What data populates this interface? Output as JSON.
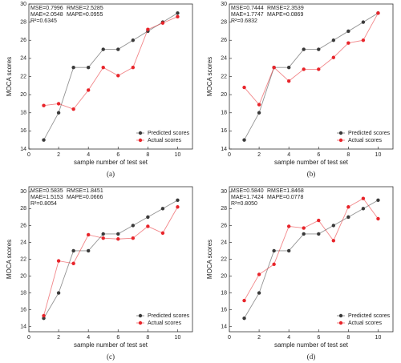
{
  "chart_data": [
    {
      "type": "line",
      "panel_label": "(a)",
      "xlabel": "sample number of test set",
      "ylabel": "MOCA scores",
      "x": [
        1,
        2,
        3,
        4,
        5,
        6,
        7,
        8,
        9,
        10
      ],
      "xlim": [
        0,
        11
      ],
      "xticks": [
        0,
        2,
        4,
        6,
        8,
        10
      ],
      "ylim": [
        14,
        30
      ],
      "yticks": [
        14,
        16,
        18,
        20,
        22,
        24,
        26,
        28,
        30
      ],
      "annotations": [
        "MSE=0.7996",
        "RMSE=2.5285",
        "MAE=2.0548",
        "MAPE=0.0955",
        "R²=0.6345"
      ],
      "legend": "lower right",
      "series": [
        {
          "name": "Predicted scores",
          "color": "#3a3a3a",
          "values": [
            15,
            18,
            23,
            23,
            25,
            25,
            26,
            27,
            28,
            29
          ]
        },
        {
          "name": "Actual scores",
          "color": "#e8242a",
          "values": [
            18.8,
            19,
            18.4,
            20.5,
            23,
            22.1,
            23,
            27.2,
            27.9,
            28.6
          ]
        }
      ]
    },
    {
      "type": "line",
      "panel_label": "(b)",
      "xlabel": "sample number of test set",
      "ylabel": "MOCA scores",
      "x": [
        1,
        2,
        3,
        4,
        5,
        6,
        7,
        8,
        9,
        10
      ],
      "xlim": [
        0,
        11
      ],
      "xticks": [
        0,
        2,
        4,
        6,
        8,
        10
      ],
      "ylim": [
        14,
        30
      ],
      "yticks": [
        14,
        16,
        18,
        20,
        22,
        24,
        26,
        28,
        30
      ],
      "annotations": [
        "MSE=0.7444",
        "RMSE=2.3539",
        "MAE=1.7747",
        "MAPE=0.0869",
        "R²=0.6832"
      ],
      "legend": "lower right",
      "series": [
        {
          "name": "Predicted scores",
          "color": "#3a3a3a",
          "values": [
            15,
            18,
            23,
            23,
            25,
            25,
            26,
            27,
            28,
            29
          ]
        },
        {
          "name": "Actual scores",
          "color": "#e8242a",
          "values": [
            20.8,
            18.9,
            23,
            21.5,
            22.8,
            22.8,
            24.1,
            25.7,
            26,
            29
          ]
        }
      ]
    },
    {
      "type": "line",
      "panel_label": "(c)",
      "xlabel": "sample number of test set",
      "ylabel": "MOCA scores",
      "x": [
        1,
        2,
        3,
        4,
        5,
        6,
        7,
        8,
        9,
        10
      ],
      "xlim": [
        0,
        11
      ],
      "xticks": [
        0,
        2,
        4,
        6,
        8,
        10
      ],
      "ylim": [
        13.4,
        30.6
      ],
      "yticks": [
        14,
        16,
        18,
        20,
        22,
        24,
        26,
        28,
        30
      ],
      "annotations": [
        "MSE=0.5835",
        "RMSE=1.8451",
        "MAE=1.5153",
        "MAPE=0.0666",
        "R²=0.8054"
      ],
      "legend": "lower right",
      "series": [
        {
          "name": "Predicted scores",
          "color": "#3a3a3a",
          "values": [
            15,
            18,
            23,
            23,
            25,
            25,
            26,
            27,
            28,
            29
          ]
        },
        {
          "name": "Actual scores",
          "color": "#e8242a",
          "values": [
            15.3,
            21.8,
            21.5,
            24.9,
            24.5,
            24.4,
            24.5,
            25.9,
            25.1,
            28.2
          ]
        }
      ]
    },
    {
      "type": "line",
      "panel_label": "(d)",
      "xlabel": "sample number of test set",
      "ylabel": "MOCA scores",
      "x": [
        1,
        2,
        3,
        4,
        5,
        6,
        7,
        8,
        9,
        10
      ],
      "xlim": [
        0,
        11
      ],
      "xticks": [
        0,
        2,
        4,
        6,
        8,
        10
      ],
      "ylim": [
        13.4,
        30.6
      ],
      "yticks": [
        14,
        16,
        18,
        20,
        22,
        24,
        26,
        28,
        30
      ],
      "annotations": [
        "MSE=0.5840",
        "RMSE=1.8468",
        "MAE=1.7424",
        "MAPE=0.0778",
        "R²=0.8050"
      ],
      "legend": "lower right",
      "series": [
        {
          "name": "Predicted scores",
          "color": "#3a3a3a",
          "values": [
            15,
            18,
            23,
            23,
            25,
            25,
            26,
            27,
            28,
            29
          ]
        },
        {
          "name": "Actual scores",
          "color": "#e8242a",
          "values": [
            17.1,
            20.2,
            21.4,
            25.9,
            25.7,
            26.6,
            24.2,
            28.2,
            29.2,
            26.8
          ]
        }
      ]
    }
  ]
}
